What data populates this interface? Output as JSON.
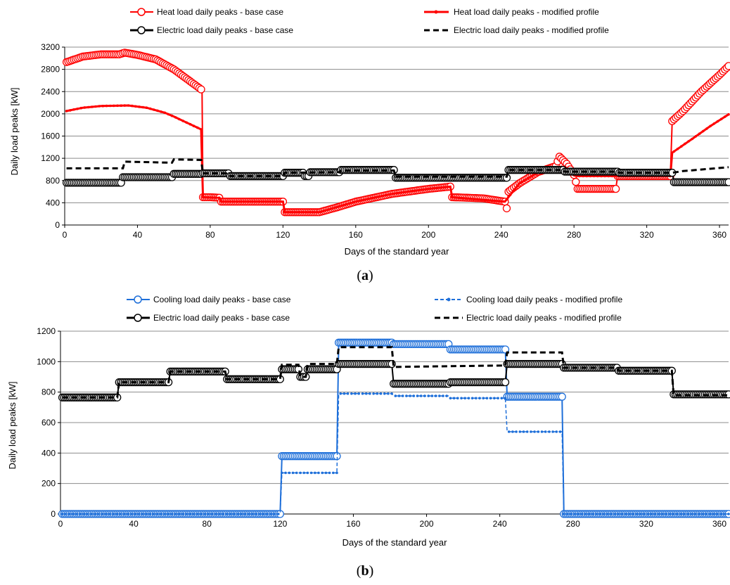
{
  "chart_data": [
    {
      "type": "line",
      "caption": {
        "open": "(",
        "letter": "a",
        "close": ")"
      },
      "xlabel": "Days of the standard year",
      "ylabel": "Daily load peaks [kW]",
      "xlim": [
        0,
        365
      ],
      "ylim": [
        0,
        3200
      ],
      "xticks": [
        0,
        40,
        80,
        120,
        160,
        200,
        240,
        280,
        320,
        360
      ],
      "yticks": [
        0,
        400,
        800,
        1200,
        1600,
        2000,
        2400,
        2800,
        3200
      ],
      "grid": "horizontal",
      "legend_position": "top",
      "series": [
        {
          "name": "Heat load daily peaks - base case",
          "color": "#ff0000",
          "style": "circle-marker",
          "points": [
            [
              1,
              2930
            ],
            [
              10,
              3030
            ],
            [
              20,
              3070
            ],
            [
              30,
              3070
            ],
            [
              33,
              3100
            ],
            [
              40,
              3060
            ],
            [
              50,
              2980
            ],
            [
              60,
              2800
            ],
            [
              70,
              2560
            ],
            [
              75,
              2440
            ],
            [
              75.5,
              2400
            ],
            [
              76,
              500
            ],
            [
              80,
              500
            ],
            [
              85,
              490
            ],
            [
              85.5,
              420
            ],
            [
              120,
              420
            ],
            [
              121,
              230
            ],
            [
              140,
              230
            ],
            [
              150,
              320
            ],
            [
              160,
              420
            ],
            [
              180,
              560
            ],
            [
              200,
              650
            ],
            [
              212,
              690
            ],
            [
              213,
              500
            ],
            [
              230,
              480
            ],
            [
              242,
              420
            ],
            [
              243,
              300
            ],
            [
              244,
              600
            ],
            [
              250,
              750
            ],
            [
              260,
              950
            ],
            [
              270,
              1060
            ],
            [
              272,
              1230
            ],
            [
              276,
              1100
            ],
            [
              280,
              900
            ],
            [
              282,
              650
            ],
            [
              303,
              650
            ],
            [
              304,
              880
            ],
            [
              333,
              880
            ],
            [
              334,
              1870
            ],
            [
              340,
              2050
            ],
            [
              350,
              2400
            ],
            [
              360,
              2700
            ],
            [
              365,
              2860
            ]
          ]
        },
        {
          "name": "Heat load daily peaks - modified profile",
          "color": "#ff0000",
          "style": "solid-small-marker",
          "points": [
            [
              1,
              2050
            ],
            [
              10,
              2110
            ],
            [
              20,
              2140
            ],
            [
              35,
              2150
            ],
            [
              45,
              2110
            ],
            [
              55,
              2020
            ],
            [
              60,
              1950
            ],
            [
              75,
              1720
            ],
            [
              76,
              500
            ],
            [
              85,
              490
            ],
            [
              86,
              420
            ],
            [
              120,
              420
            ],
            [
              121,
              230
            ],
            [
              140,
              230
            ],
            [
              160,
              420
            ],
            [
              180,
              560
            ],
            [
              200,
              650
            ],
            [
              212,
              690
            ],
            [
              213,
              500
            ],
            [
              242,
              420
            ],
            [
              243,
              460
            ],
            [
              250,
              750
            ],
            [
              260,
              940
            ],
            [
              270,
              1040
            ],
            [
              275,
              1050
            ],
            [
              280,
              890
            ],
            [
              282,
              880
            ],
            [
              333,
              880
            ],
            [
              334,
              1300
            ],
            [
              345,
              1550
            ],
            [
              355,
              1780
            ],
            [
              365,
              1990
            ]
          ]
        },
        {
          "name": "Electric load daily peaks - base case",
          "color": "#000000",
          "style": "circle-marker",
          "points": [
            [
              1,
              760
            ],
            [
              31,
              760
            ],
            [
              32,
              860
            ],
            [
              59,
              860
            ],
            [
              60,
              920
            ],
            [
              75,
              920
            ],
            [
              76,
              930
            ],
            [
              90,
              930
            ],
            [
              91,
              880
            ],
            [
              120,
              880
            ],
            [
              121,
              940
            ],
            [
              131,
              940
            ],
            [
              132,
              880
            ],
            [
              134,
              880
            ],
            [
              135,
              950
            ],
            [
              151,
              950
            ],
            [
              152,
              990
            ],
            [
              181,
              990
            ],
            [
              182,
              850
            ],
            [
              243,
              850
            ],
            [
              244,
              990
            ],
            [
              274,
              990
            ],
            [
              275,
              960
            ],
            [
              304,
              960
            ],
            [
              305,
              940
            ],
            [
              334,
              940
            ],
            [
              335,
              770
            ],
            [
              365,
              770
            ]
          ]
        },
        {
          "name": "Electric load daily peaks - modified profile",
          "color": "#000000",
          "style": "dashed",
          "points": [
            [
              1,
              1020
            ],
            [
              32,
              1020
            ],
            [
              33,
              1140
            ],
            [
              59,
              1120
            ],
            [
              60,
              1180
            ],
            [
              75,
              1170
            ],
            [
              76,
              930
            ],
            [
              90,
              930
            ],
            [
              91,
              880
            ],
            [
              120,
              880
            ],
            [
              121,
              940
            ],
            [
              151,
              950
            ],
            [
              152,
              980
            ],
            [
              181,
              980
            ],
            [
              182,
              870
            ],
            [
              243,
              870
            ],
            [
              244,
              990
            ],
            [
              274,
              990
            ],
            [
              275,
              960
            ],
            [
              304,
              960
            ],
            [
              305,
              940
            ],
            [
              334,
              940
            ],
            [
              340,
              970
            ],
            [
              365,
              1040
            ]
          ]
        }
      ]
    },
    {
      "type": "line",
      "caption": {
        "open": "(",
        "letter": "b",
        "close": ")"
      },
      "xlabel": "Days of the standard year",
      "ylabel": "Daily load peaks [kW]",
      "xlim": [
        0,
        365
      ],
      "ylim": [
        0,
        1200
      ],
      "xticks": [
        0,
        40,
        80,
        120,
        160,
        200,
        240,
        280,
        320,
        360
      ],
      "yticks": [
        0,
        200,
        400,
        600,
        800,
        1000,
        1200
      ],
      "grid": "horizontal",
      "legend_position": "top",
      "series": [
        {
          "name": "Cooling load daily peaks - base case",
          "color": "#1e6fd9",
          "style": "circle-marker",
          "points": [
            [
              1,
              0
            ],
            [
              120,
              0
            ],
            [
              121,
              380
            ],
            [
              151,
              380
            ],
            [
              152,
              1125
            ],
            [
              181,
              1125
            ],
            [
              182,
              1115
            ],
            [
              212,
              1115
            ],
            [
              213,
              1080
            ],
            [
              243,
              1080
            ],
            [
              244,
              770
            ],
            [
              274,
              770
            ],
            [
              275,
              0
            ],
            [
              365,
              0
            ]
          ]
        },
        {
          "name": "Cooling load daily peaks - modified profile",
          "color": "#1e6fd9",
          "style": "dashed-small-marker",
          "points": [
            [
              1,
              0
            ],
            [
              120,
              0
            ],
            [
              121,
              270
            ],
            [
              151,
              270
            ],
            [
              152,
              790
            ],
            [
              181,
              790
            ],
            [
              182,
              775
            ],
            [
              212,
              775
            ],
            [
              213,
              760
            ],
            [
              243,
              760
            ],
            [
              244,
              540
            ],
            [
              274,
              540
            ],
            [
              275,
              0
            ],
            [
              365,
              0
            ]
          ]
        },
        {
          "name": "Electric load daily peaks - base case",
          "color": "#000000",
          "style": "circle-marker",
          "points": [
            [
              1,
              765
            ],
            [
              31,
              765
            ],
            [
              32,
              865
            ],
            [
              59,
              865
            ],
            [
              60,
              935
            ],
            [
              90,
              935
            ],
            [
              91,
              885
            ],
            [
              120,
              885
            ],
            [
              121,
              950
            ],
            [
              130,
              950
            ],
            [
              131,
              900
            ],
            [
              134,
              900
            ],
            [
              135,
              950
            ],
            [
              151,
              950
            ],
            [
              152,
              985
            ],
            [
              181,
              985
            ],
            [
              182,
              855
            ],
            [
              212,
              855
            ],
            [
              213,
              865
            ],
            [
              243,
              865
            ],
            [
              244,
              985
            ],
            [
              274,
              985
            ],
            [
              275,
              960
            ],
            [
              304,
              960
            ],
            [
              305,
              940
            ],
            [
              334,
              940
            ],
            [
              335,
              785
            ],
            [
              365,
              785
            ]
          ]
        },
        {
          "name": "Electric load daily peaks - modified profile",
          "color": "#000000",
          "style": "dashed",
          "points": [
            [
              1,
              765
            ],
            [
              31,
              765
            ],
            [
              32,
              865
            ],
            [
              59,
              865
            ],
            [
              60,
              935
            ],
            [
              90,
              935
            ],
            [
              91,
              885
            ],
            [
              120,
              885
            ],
            [
              121,
              980
            ],
            [
              130,
              980
            ],
            [
              131,
              900
            ],
            [
              134,
              900
            ],
            [
              135,
              985
            ],
            [
              151,
              985
            ],
            [
              152,
              1095
            ],
            [
              181,
              1095
            ],
            [
              182,
              965
            ],
            [
              212,
              970
            ],
            [
              243,
              975
            ],
            [
              244,
              1060
            ],
            [
              274,
              1060
            ],
            [
              275,
              960
            ],
            [
              304,
              960
            ],
            [
              305,
              940
            ],
            [
              334,
              940
            ],
            [
              335,
              780
            ],
            [
              365,
              780
            ]
          ]
        }
      ]
    }
  ]
}
